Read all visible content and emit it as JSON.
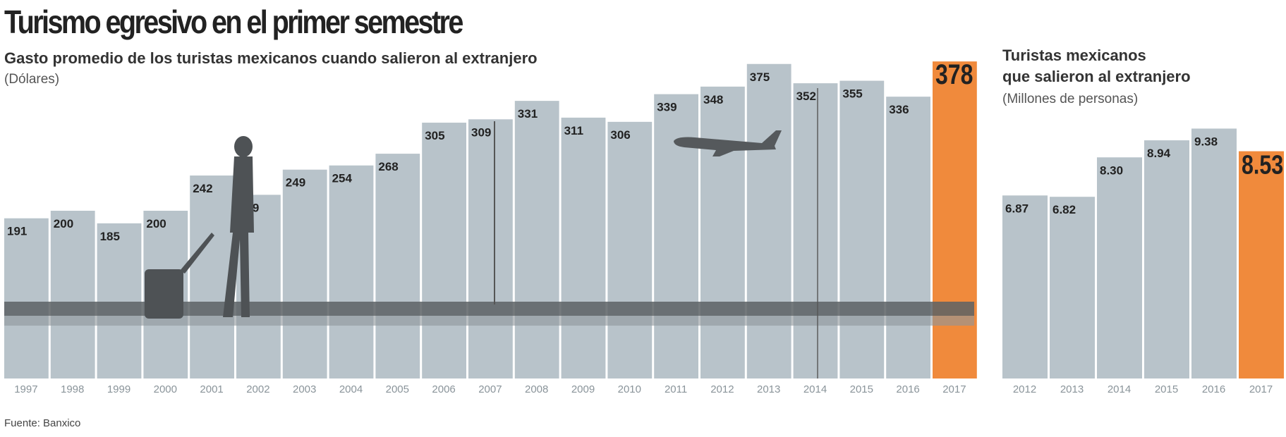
{
  "title": "Turismo egresivo en el primer semestre",
  "source": "Fuente: Banxico",
  "colors": {
    "bar": "#b8c3ca",
    "highlight": "#f08a3c",
    "label": "#222222"
  },
  "chart_data": [
    {
      "type": "bar",
      "title": "Gasto promedio de los turistas mexicanos cuando salieron al extranjero",
      "ylabel": "(Dólares)",
      "categories": [
        "1997",
        "1998",
        "1999",
        "2000",
        "2001",
        "2002",
        "2003",
        "2004",
        "2005",
        "2006",
        "2007",
        "2008",
        "2009",
        "2010",
        "2011",
        "2012",
        "2013",
        "2014",
        "2015",
        "2016",
        "2017"
      ],
      "values": [
        191,
        200,
        185,
        200,
        242,
        219,
        249,
        254,
        268,
        305,
        309,
        331,
        311,
        306,
        339,
        348,
        375,
        352,
        355,
        336,
        378
      ],
      "labels": [
        "191",
        "200",
        "185",
        "200",
        "242",
        "219",
        "249",
        "254",
        "268",
        "305",
        "309",
        "331",
        "311",
        "306",
        "339",
        "348",
        "375",
        "352",
        "355",
        "336",
        "378"
      ],
      "highlight": "2017",
      "grid": false
    },
    {
      "type": "bar",
      "title": [
        "Turistas mexicanos",
        "que salieron al extranjero"
      ],
      "ylabel": "(Millones de personas)",
      "categories": [
        "2012",
        "2013",
        "2014",
        "2015",
        "2016",
        "2017"
      ],
      "values": [
        6.87,
        6.82,
        8.3,
        8.94,
        9.38,
        8.53
      ],
      "labels": [
        "6.87",
        "6.82",
        "8.30",
        "8.94",
        "9.38",
        "8.53"
      ],
      "highlight": "2017",
      "grid": false
    }
  ]
}
